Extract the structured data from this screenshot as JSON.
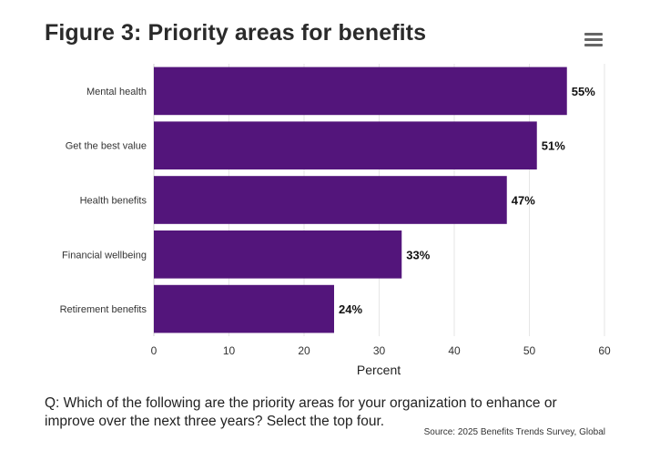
{
  "title": "Figure 3: Priority areas for benefits",
  "menu_icon": "hamburger-menu-icon",
  "question": "Q: Which of the following are the priority areas for your organization to enhance or improve over the next three years? Select the top four.",
  "source": "Source: 2025 Benefits Trends Survey, Global",
  "chart_data": {
    "type": "bar",
    "orientation": "horizontal",
    "title": "Figure 3: Priority areas for benefits",
    "categories": [
      "Mental health",
      "Get the best value",
      "Health benefits",
      "Financial wellbeing",
      "Retirement benefits"
    ],
    "values": [
      55,
      51,
      47,
      33,
      24
    ],
    "data_labels": [
      "55%",
      "51%",
      "47%",
      "33%",
      "24%"
    ],
    "xlabel": "Percent",
    "ylabel": "",
    "xlim": [
      0,
      60
    ],
    "xticks": [
      0,
      10,
      20,
      30,
      40,
      50,
      60
    ],
    "xtick_labels": [
      "0",
      "10",
      "20",
      "30",
      "40",
      "50",
      "60"
    ],
    "grid": true,
    "bar_color": "#53157b"
  }
}
